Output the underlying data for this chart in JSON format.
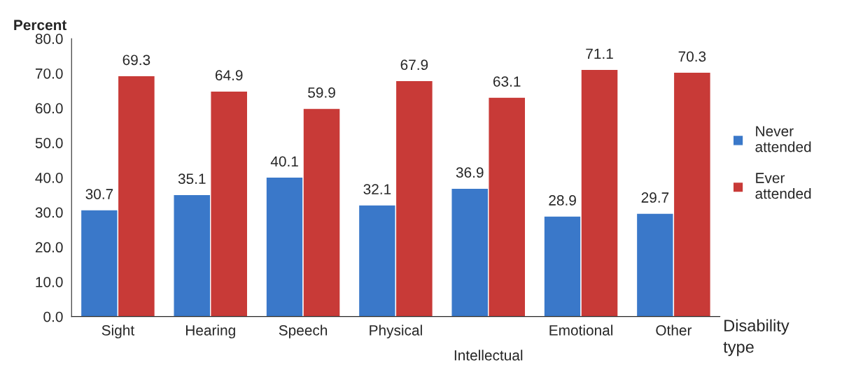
{
  "chart_data": {
    "type": "bar",
    "ylabel": "Percent",
    "xlabel": "Disability\ntype",
    "categories": [
      "Sight",
      "Hearing",
      "Speech",
      "Physical",
      "Intellectual",
      "Emotional",
      "Other"
    ],
    "series": [
      {
        "name": "Never\nattended",
        "color": "#3a78c9",
        "values": [
          30.7,
          35.1,
          40.1,
          32.1,
          36.9,
          28.9,
          29.7
        ]
      },
      {
        "name": "Ever\nattended",
        "color": "#c83a37",
        "values": [
          69.3,
          64.9,
          59.9,
          67.9,
          63.1,
          71.1,
          70.3
        ]
      }
    ],
    "ylim": [
      0,
      80
    ],
    "yticks": [
      {
        "value": 0,
        "label": "0.0"
      },
      {
        "value": 10,
        "label": "10.0"
      },
      {
        "value": 20,
        "label": "20.0"
      },
      {
        "value": 30,
        "label": "30.0"
      },
      {
        "value": 40,
        "label": "40.0"
      },
      {
        "value": 50,
        "label": "50.0"
      },
      {
        "value": 60,
        "label": "60.0"
      },
      {
        "value": 70,
        "label": "70.0"
      },
      {
        "value": 80,
        "label": "80.0"
      }
    ],
    "data_labels": true,
    "grid": false,
    "legend": "right"
  }
}
